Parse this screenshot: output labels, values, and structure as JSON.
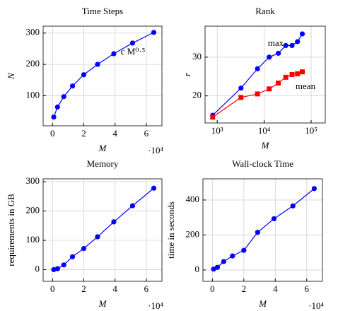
{
  "chart_data": [
    {
      "type": "line",
      "title": "Time Steps",
      "x_label": "M",
      "y_label": "N",
      "x_multiplier": "·10⁴",
      "x": [
        0.08,
        0.32,
        0.72,
        1.28,
        2.0,
        2.88,
        3.92,
        5.12,
        6.48
      ],
      "xlim": [
        -0.6,
        7.0
      ],
      "xticks": [
        0,
        2,
        4,
        6
      ],
      "ylim": [
        4,
        322
      ],
      "yticks": [
        100,
        200,
        300
      ],
      "grid": true,
      "series": [
        {
          "color": "#0000ff",
          "marker": "circle",
          "values": [
            32,
            64,
            97,
            131,
            167,
            200,
            234,
            268,
            302
          ]
        }
      ],
      "annotations": [
        {
          "text": "c M⁰·⁵",
          "color": "#ff0000"
        }
      ]
    },
    {
      "type": "line",
      "title": "Rank",
      "x_label": "M",
      "y_label": "r",
      "x_scale": "log",
      "x": [
        800,
        3200,
        7200,
        12800,
        20000,
        28800,
        39200,
        51200,
        64800
      ],
      "xlim": [
        550,
        200000
      ],
      "xticks": [
        {
          "value": 1000,
          "label": "10³"
        },
        {
          "value": 10000,
          "label": "10⁴"
        },
        {
          "value": 100000,
          "label": "10⁵"
        }
      ],
      "ylim": [
        13,
        38
      ],
      "yticks": [
        20,
        30
      ],
      "grid": true,
      "series": [
        {
          "color": "#0000ff",
          "marker": "circle",
          "values": [
            15,
            22,
            27,
            30,
            31,
            33,
            33,
            34,
            36
          ]
        },
        {
          "color": "#ff0000",
          "marker": "square",
          "values": [
            14.5,
            19.6,
            20.5,
            21.8,
            23.3,
            24.8,
            25.5,
            25.7,
            26.2
          ]
        }
      ],
      "annotations": [
        {
          "text": "max",
          "color": "#0000ff"
        },
        {
          "text": "mean",
          "color": "#ff0000"
        }
      ]
    },
    {
      "type": "line",
      "title": "Memory",
      "x_label": "M",
      "y_label": "requirements in GB",
      "x_multiplier": "·10⁴",
      "x": [
        0.08,
        0.32,
        0.72,
        1.28,
        2.0,
        2.88,
        3.92,
        5.12,
        6.48
      ],
      "xlim": [
        -0.6,
        7.0
      ],
      "xticks": [
        0,
        2,
        4,
        6
      ],
      "ylim": [
        -40,
        310
      ],
      "yticks": [
        0,
        100,
        200,
        300
      ],
      "grid": true,
      "series": [
        {
          "color": "#0000ff",
          "marker": "circle",
          "values": [
            0,
            3,
            16,
            44,
            72,
            112,
            163,
            218,
            278
          ]
        }
      ]
    },
    {
      "type": "line",
      "title": "Wall-clock Time",
      "x_label": "M",
      "y_label": "time in seconds",
      "x_multiplier": "·10⁴",
      "x": [
        0.08,
        0.32,
        0.72,
        1.28,
        2.0,
        2.88,
        3.92,
        5.12,
        6.48
      ],
      "xlim": [
        -0.6,
        7.0
      ],
      "xticks": [
        0,
        2,
        4,
        6
      ],
      "ylim": [
        -65,
        521
      ],
      "yticks": [
        0,
        200,
        400
      ],
      "grid": true,
      "series": [
        {
          "color": "#0000ff",
          "marker": "circle",
          "values": [
            5,
            15,
            48,
            80,
            112,
            215,
            293,
            366,
            465
          ]
        }
      ]
    }
  ]
}
